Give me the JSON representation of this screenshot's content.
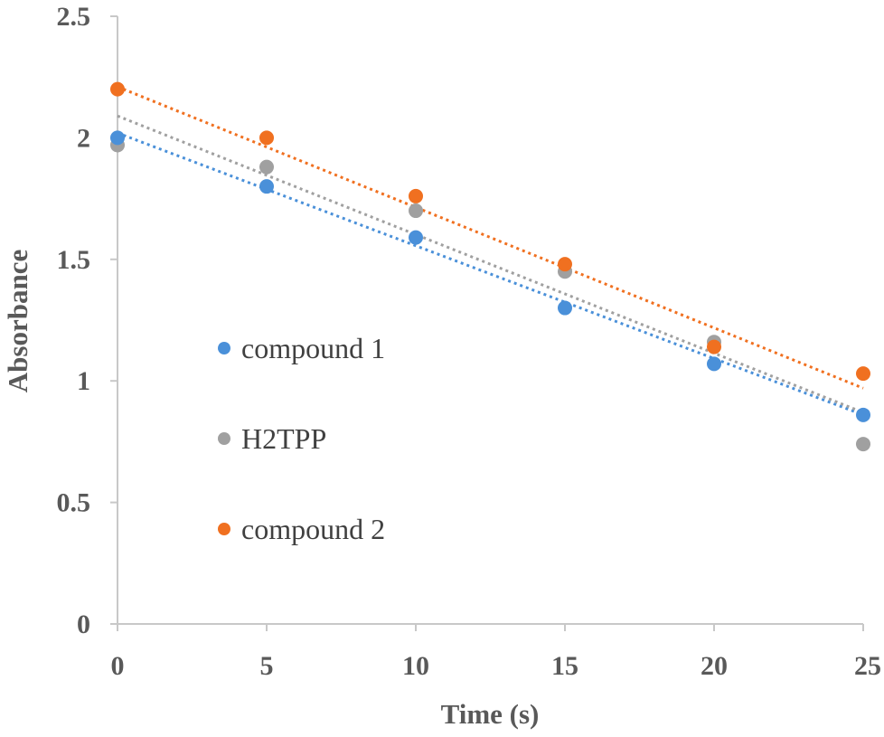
{
  "chart_data": {
    "type": "scatter",
    "title": "",
    "xlabel": "Time (s)",
    "ylabel": "Absorbance",
    "xlim": [
      0,
      25
    ],
    "ylim": [
      0,
      2.5
    ],
    "xticks": [
      0,
      5,
      10,
      15,
      20,
      25
    ],
    "yticks": [
      0,
      0.5,
      1,
      1.5,
      2,
      2.5
    ],
    "xtick_labels": [
      "0",
      "5",
      "10",
      "15",
      "20",
      "25"
    ],
    "ytick_labels": [
      "0",
      "0.5",
      "1",
      "1.5",
      "2",
      "2.5"
    ],
    "grid": false,
    "legend_position": "left-center",
    "trendlines": "linear, dotted",
    "series": [
      {
        "name": "compound 1",
        "color": "#4a90d9",
        "x": [
          0,
          5,
          10,
          15,
          20,
          25
        ],
        "y": [
          2.0,
          1.8,
          1.59,
          1.3,
          1.07,
          0.86
        ],
        "trend": [
          2.02,
          0.86
        ]
      },
      {
        "name": "H2TPP",
        "color": "#a0a0a0",
        "x": [
          0,
          5,
          10,
          15,
          20,
          25
        ],
        "y": [
          1.97,
          1.88,
          1.7,
          1.45,
          1.16,
          0.74
        ],
        "trend": [
          2.09,
          0.87
        ]
      },
      {
        "name": "compound 2",
        "color": "#f07020",
        "x": [
          0,
          5,
          10,
          15,
          20,
          25
        ],
        "y": [
          2.2,
          2.0,
          1.76,
          1.48,
          1.14,
          1.03
        ],
        "trend": [
          2.21,
          0.97
        ]
      }
    ]
  }
}
